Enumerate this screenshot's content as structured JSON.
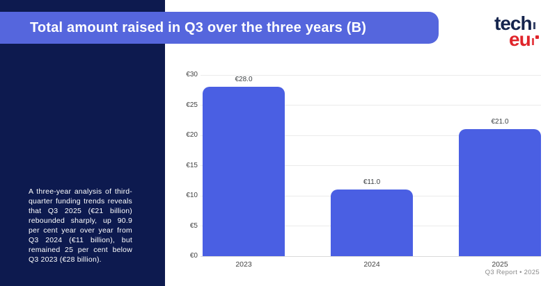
{
  "banner": {
    "title": "Total amount raised in Q3 over the three years (B)"
  },
  "logo": {
    "line1": "tech",
    "line2": "eu"
  },
  "sidebar": {
    "paragraph": "A three-year analysis of third-quarter funding trends reveals that Q3 2025 (€21 billion) rebounded sharply, up 90.9 per cent year over year from Q3 2024 (€11 billion), but remained 25 per cent below Q3 2023 (€28 billion)."
  },
  "footer": {
    "text": "Q3 Report • 2025"
  },
  "colors": {
    "sidebar_navy": "#0d1a4f",
    "banner_blue": "#5566dd",
    "bar_blue": "#4a5fe3",
    "logo_navy": "#15244d",
    "logo_red": "#e0252b",
    "gridline": "#ebebeb",
    "axis_text": "#424242"
  },
  "chart_data": {
    "type": "bar",
    "title": "Total amount raised in Q3 over the three years (B)",
    "categories": [
      "2023",
      "2024",
      "2025"
    ],
    "values": [
      28.0,
      11.0,
      21.0
    ],
    "value_labels": [
      "€28.0",
      "€11.0",
      "€21.0"
    ],
    "xlabel": "",
    "ylabel": "",
    "ylim": [
      0,
      30
    ],
    "ytick_step": 5,
    "ytick_prefix": "€",
    "ytick_labels": [
      "€0",
      "€5",
      "€10",
      "€15",
      "€20",
      "€25",
      "€30"
    ],
    "grid": true,
    "legend": false,
    "bar_color": "#4a5fe3"
  }
}
